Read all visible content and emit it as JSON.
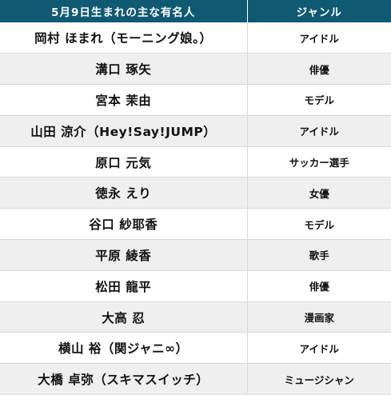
{
  "table": {
    "headers": {
      "name": "5月9日生まれの主な有名人",
      "genre": "ジャンル"
    },
    "rows": [
      {
        "name": "岡村 ほまれ（モーニング娘。）",
        "genre": "アイドル"
      },
      {
        "name": "溝口 琢矢",
        "genre": "俳優"
      },
      {
        "name": "宮本 茉由",
        "genre": "モデル"
      },
      {
        "name": "山田 涼介（Hey!Say!JUMP）",
        "genre": "アイドル"
      },
      {
        "name": "原口 元気",
        "genre": "サッカー選手"
      },
      {
        "name": "徳永 えり",
        "genre": "女優"
      },
      {
        "name": "谷口 紗耶香",
        "genre": "モデル"
      },
      {
        "name": "平原 綾香",
        "genre": "歌手"
      },
      {
        "name": "松田 龍平",
        "genre": "俳優"
      },
      {
        "name": "大高 忍",
        "genre": "漫画家"
      },
      {
        "name": "横山 裕（関ジャニ∞）",
        "genre": "アイドル"
      },
      {
        "name": "大橋 卓弥（スキマスイッチ）",
        "genre": "ミュージシャン"
      }
    ]
  },
  "colors": {
    "header_bg": "#0f5a72",
    "header_text": "#ffffff",
    "row_alt_bg": "#efefef"
  }
}
